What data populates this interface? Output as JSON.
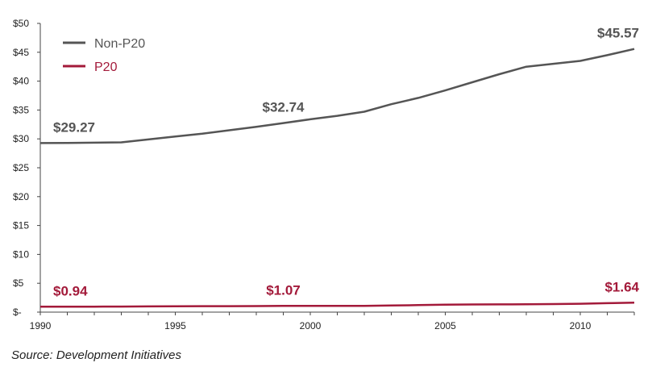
{
  "chart_data": {
    "type": "line",
    "x": [
      1990,
      1991,
      1992,
      1993,
      1994,
      1995,
      1996,
      1997,
      1998,
      1999,
      2000,
      2001,
      2002,
      2003,
      2004,
      2005,
      2006,
      2007,
      2008,
      2009,
      2010,
      2011,
      2012
    ],
    "series": [
      {
        "name": "Non-P20",
        "color": "#555555",
        "values": [
          29.27,
          29.3,
          29.35,
          29.4,
          29.9,
          30.4,
          30.9,
          31.5,
          32.1,
          32.74,
          33.4,
          34.0,
          34.7,
          36.0,
          37.1,
          38.4,
          39.8,
          41.2,
          42.5,
          43.0,
          43.5,
          44.5,
          45.57
        ]
      },
      {
        "name": "P20",
        "color": "#a31a3a",
        "values": [
          0.94,
          0.94,
          0.95,
          0.96,
          0.99,
          1.01,
          1.03,
          1.04,
          1.05,
          1.07,
          1.07,
          1.07,
          1.08,
          1.15,
          1.22,
          1.3,
          1.32,
          1.34,
          1.36,
          1.4,
          1.45,
          1.55,
          1.64
        ]
      }
    ],
    "data_labels": [
      {
        "series": 0,
        "x": 1990,
        "text": "$29.27"
      },
      {
        "series": 0,
        "x": 1999,
        "text": "$32.74"
      },
      {
        "series": 0,
        "x": 2012,
        "text": "$45.57"
      },
      {
        "series": 1,
        "x": 1990,
        "text": "$0.94"
      },
      {
        "series": 1,
        "x": 1999,
        "text": "$1.07"
      },
      {
        "series": 1,
        "x": 2012,
        "text": "$1.64"
      }
    ],
    "y_ticks": [
      {
        "value": 50,
        "label": "$50"
      },
      {
        "value": 45,
        "label": "$45"
      },
      {
        "value": 40,
        "label": "$40"
      },
      {
        "value": 35,
        "label": "$35"
      },
      {
        "value": 30,
        "label": "$30"
      },
      {
        "value": 25,
        "label": "$25"
      },
      {
        "value": 20,
        "label": "$20"
      },
      {
        "value": 15,
        "label": "$15"
      },
      {
        "value": 10,
        "label": "$10"
      },
      {
        "value": 5,
        "label": "$5"
      },
      {
        "value": 0,
        "label": "$-"
      }
    ],
    "x_ticks": [
      {
        "value": 1990,
        "label": "1990"
      },
      {
        "value": 1995,
        "label": "1995"
      },
      {
        "value": 2000,
        "label": "2000"
      },
      {
        "value": 2005,
        "label": "2005"
      },
      {
        "value": 2010,
        "label": "2010"
      }
    ],
    "xlim": [
      1990,
      2012
    ],
    "ylim": [
      0,
      50
    ],
    "grid": false,
    "legend_position": "top-left",
    "title": "",
    "xlabel": "",
    "ylabel": ""
  },
  "source_note": "Source: Development Initiatives"
}
